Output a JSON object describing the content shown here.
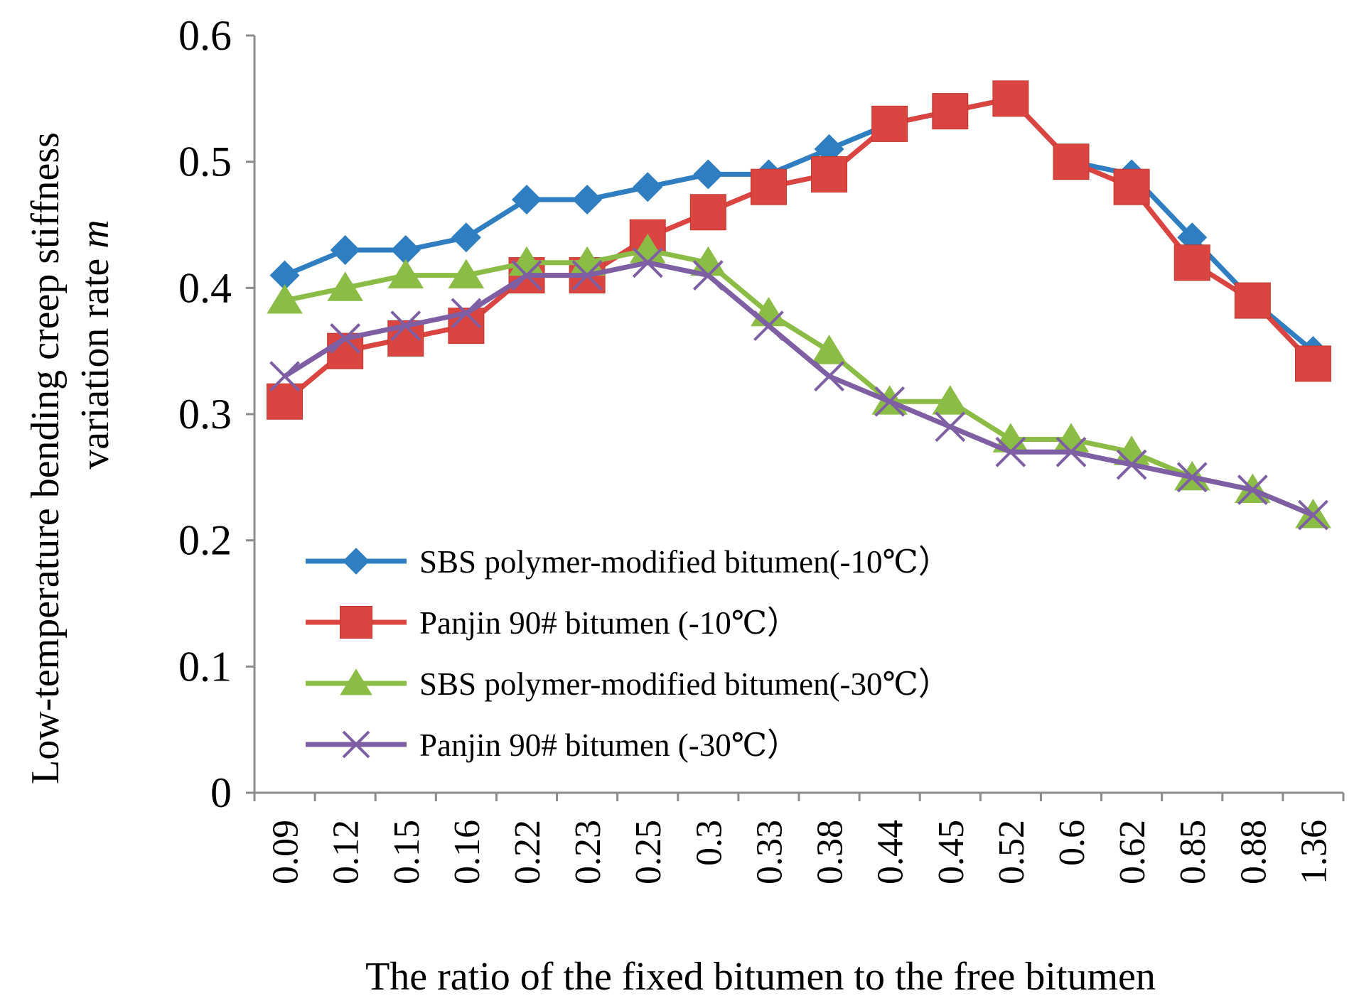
{
  "chart_data": {
    "type": "line",
    "title": "",
    "xlabel": "The ratio of the fixed bitumen to the free bitumen",
    "ylabel_line1": "Low-temperature bending creep stiffness",
    "ylabel_line2_prefix": "variation rate ",
    "ylabel_line2_var": "m",
    "ylim": [
      0,
      0.6
    ],
    "yticks": [
      "0",
      "0.1",
      "0.2",
      "0.3",
      "0.4",
      "0.5",
      "0.6"
    ],
    "ytick_values": [
      0,
      0.1,
      0.2,
      0.3,
      0.4,
      0.5,
      0.6
    ],
    "categories": [
      "0.09",
      "0.12",
      "0.15",
      "0.16",
      "0.22",
      "0.23",
      "0.25",
      "0.3",
      "0.33",
      "0.38",
      "0.44",
      "0.45",
      "0.52",
      "0.6",
      "0.62",
      "0.85",
      "0.88",
      "1.36"
    ],
    "grid": false,
    "legend_position": "lower-left",
    "series": [
      {
        "name": "SBS polymer-modified bitumen(-10℃）",
        "color": "#2E7EC1",
        "marker": "diamond",
        "values": [
          0.41,
          0.43,
          0.43,
          0.44,
          0.47,
          0.47,
          0.48,
          0.49,
          0.49,
          0.51,
          0.53,
          0.54,
          0.55,
          0.5,
          0.49,
          0.44,
          0.39,
          0.35
        ]
      },
      {
        "name": "Panjin 90# bitumen (-10℃）",
        "color": "#DA4541",
        "marker": "square",
        "values": [
          0.31,
          0.35,
          0.36,
          0.37,
          0.41,
          0.41,
          0.44,
          0.46,
          0.48,
          0.49,
          0.53,
          0.54,
          0.55,
          0.5,
          0.48,
          0.42,
          0.39,
          0.34
        ]
      },
      {
        "name": "SBS polymer-modified bitumen(-30℃）",
        "color": "#8BBC45",
        "marker": "triangle",
        "values": [
          0.39,
          0.4,
          0.41,
          0.41,
          0.42,
          0.42,
          0.43,
          0.42,
          0.38,
          0.35,
          0.31,
          0.31,
          0.28,
          0.28,
          0.27,
          0.25,
          0.24,
          0.22
        ]
      },
      {
        "name": "Panjin 90# bitumen (-30℃）",
        "color": "#7F5FA3",
        "marker": "x",
        "values": [
          0.33,
          0.36,
          0.37,
          0.38,
          0.41,
          0.41,
          0.42,
          0.41,
          0.37,
          0.33,
          0.31,
          0.29,
          0.27,
          0.27,
          0.26,
          0.25,
          0.24,
          0.22
        ]
      }
    ]
  }
}
